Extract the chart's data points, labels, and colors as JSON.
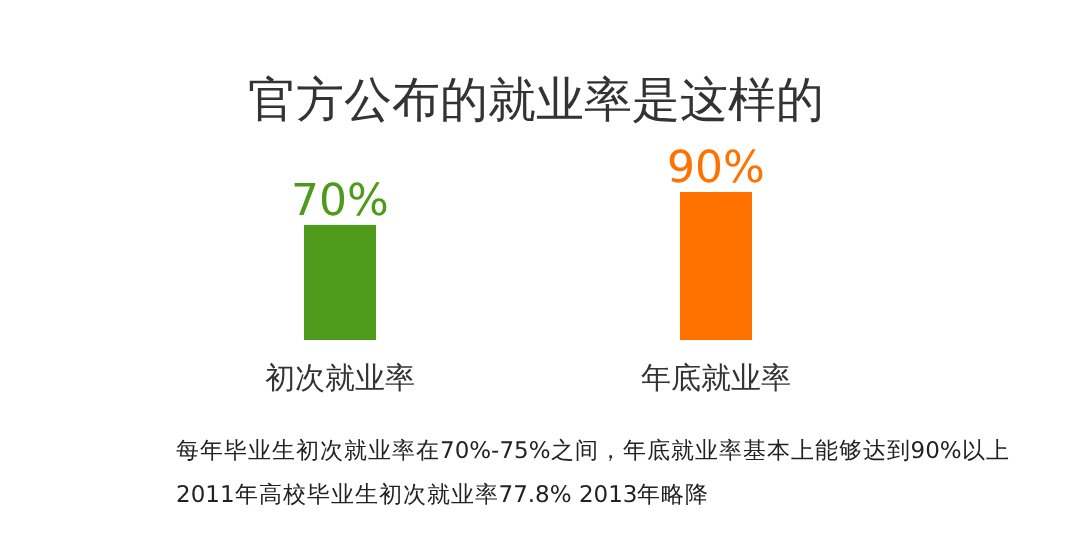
{
  "chart_data": {
    "type": "bar",
    "title": "官方公布的就业率是这样的",
    "categories": [
      "初次就业率",
      "年底就业率"
    ],
    "values": [
      70,
      90
    ],
    "colors": [
      "#4e9a1a",
      "#ff7200"
    ],
    "value_labels": [
      "70%",
      "90%"
    ],
    "annotations": [
      "每年毕业生初次就业率在70%-75%之间，年底就业率基本上能够达到90%以上",
      "2011年高校毕业生初次就业率77.8% 2013年略降"
    ]
  }
}
